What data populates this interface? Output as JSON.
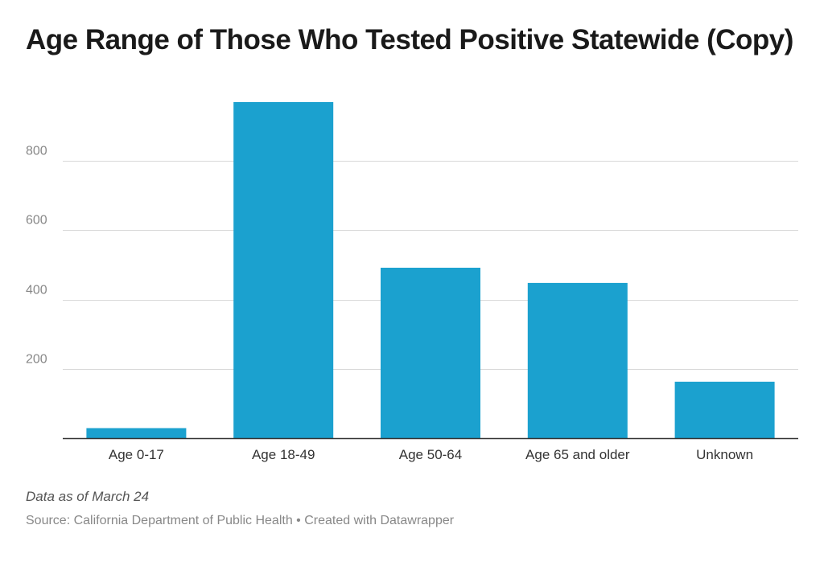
{
  "chart_data": {
    "type": "bar",
    "title": "Age Range of Those Who Tested Positive Statewide (Copy)",
    "categories": [
      "Age 0-17",
      "Age 18-49",
      "Age 50-64",
      "Age 65 and older",
      "Unknown"
    ],
    "values": [
      29,
      970,
      492,
      448,
      163
    ],
    "ylim": [
      0,
      970
    ],
    "yticks": [
      200,
      400,
      600,
      800
    ],
    "ytick_labels": [
      "200",
      "400",
      "600",
      "800"
    ],
    "xlabel": "",
    "ylabel": "",
    "grid": true,
    "bar_color": "#1ba1cf"
  },
  "footer": {
    "note": "Data as of March 24",
    "source": "Source: California Department of Public Health • Created with Datawrapper"
  }
}
